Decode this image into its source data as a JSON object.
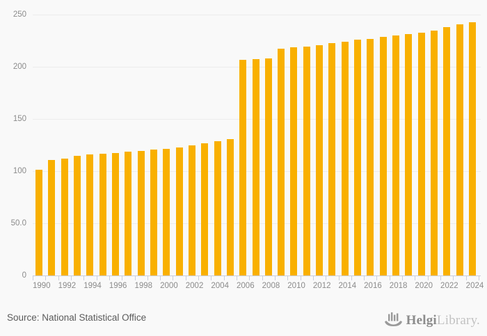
{
  "chart_data": {
    "type": "bar",
    "title": "",
    "xlabel": "",
    "ylabel": "",
    "x": [
      1990,
      1991,
      1992,
      1993,
      1994,
      1995,
      1996,
      1997,
      1998,
      1999,
      2000,
      2001,
      2002,
      2003,
      2004,
      2005,
      2006,
      2007,
      2008,
      2009,
      2010,
      2011,
      2012,
      2013,
      2014,
      2015,
      2016,
      2017,
      2018,
      2019,
      2020,
      2021,
      2022,
      2023,
      2024
    ],
    "values": [
      101.5,
      111,
      112,
      114.5,
      116,
      116.5,
      117.5,
      118.5,
      119.5,
      120.5,
      121.5,
      123,
      124.5,
      127,
      128.5,
      131,
      206.5,
      207.5,
      208,
      217.5,
      218.5,
      219.5,
      221,
      222.5,
      224,
      226,
      227,
      228.5,
      230,
      231.5,
      233,
      235,
      238,
      240.5,
      242.5
    ],
    "ylim": [
      0,
      250
    ],
    "yticks": [
      {
        "value": 0,
        "label": "0"
      },
      {
        "value": 50,
        "label": "50.0"
      },
      {
        "value": 100,
        "label": "100"
      },
      {
        "value": 150,
        "label": "150"
      },
      {
        "value": 200,
        "label": "200"
      },
      {
        "value": 250,
        "label": "250"
      }
    ],
    "xtick_labels": [
      "1990",
      "1992",
      "1994",
      "1996",
      "1998",
      "2000",
      "2002",
      "2004",
      "2006",
      "2008",
      "2010",
      "2012",
      "2014",
      "2016",
      "2018",
      "2020",
      "2022",
      "2024"
    ],
    "grid": true,
    "legend": "none",
    "bar_color": "#f9b000"
  },
  "colors": {
    "background": "#f9f9f9",
    "gridline": "#ececec",
    "axis": "#c9cede",
    "tick_label": "#8b8b8b",
    "source_text": "#5a5a5a",
    "logo_primary": "#8c8c8c",
    "logo_secondary": "#c2c2c2"
  },
  "footer": {
    "source_label": "Source: National Statistical Office",
    "logo": {
      "icon": "helgi-ship-icon",
      "brand_primary": "Helgi",
      "brand_secondary": "Library."
    }
  }
}
